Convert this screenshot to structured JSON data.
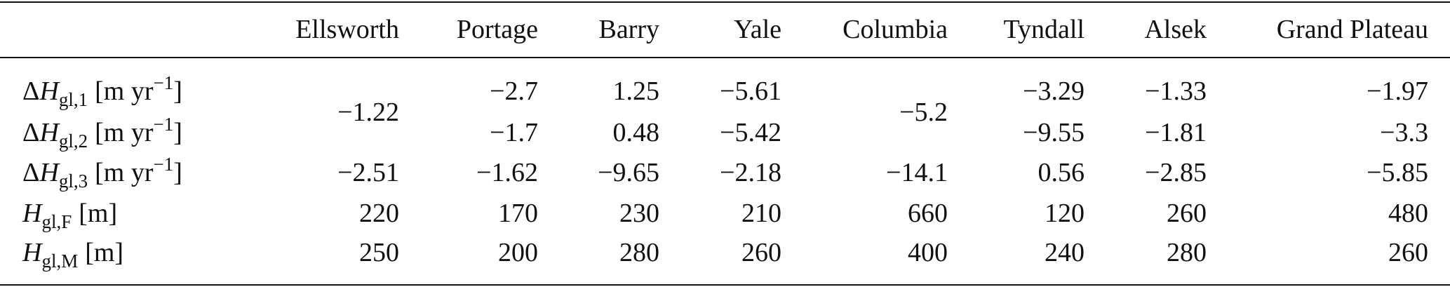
{
  "table": {
    "columns": [
      "Ellsworth",
      "Portage",
      "Barry",
      "Yale",
      "Columbia",
      "Tyndall",
      "Alsek",
      "Grand Plateau"
    ],
    "rows": [
      {
        "label": {
          "delta": "Δ",
          "symbol": "H",
          "subscript": "gl,1",
          "unit": "[m yr",
          "superscript": "−1",
          "unit_close": "]"
        },
        "cells": [
          "−1.22",
          "−2.7",
          "1.25",
          "−5.61",
          "−5.2",
          "−3.29",
          "−1.33",
          "−1.97"
        ]
      },
      {
        "label": {
          "delta": "Δ",
          "symbol": "H",
          "subscript": "gl,2",
          "unit": "[m yr",
          "superscript": "−1",
          "unit_close": "]"
        },
        "cells": [
          null,
          "−1.7",
          "0.48",
          "−5.42",
          null,
          "−9.55",
          "−1.81",
          "−3.3"
        ]
      },
      {
        "label": {
          "delta": "Δ",
          "symbol": "H",
          "subscript": "gl,3",
          "unit": "[m yr",
          "superscript": "−1",
          "unit_close": "]"
        },
        "cells": [
          "−2.51",
          "−1.62",
          "−9.65",
          "−2.18",
          "−14.1",
          "0.56",
          "−2.85",
          "−5.85"
        ]
      },
      {
        "label": {
          "symbol": "H",
          "subscript": "gl,F",
          "unit": "[m]"
        },
        "cells": [
          "220",
          "170",
          "230",
          "210",
          "660",
          "120",
          "260",
          "480"
        ]
      },
      {
        "label": {
          "symbol": "H",
          "subscript": "gl,M",
          "unit": "[m]"
        },
        "cells": [
          "250",
          "200",
          "280",
          "260",
          "400",
          "240",
          "280",
          "260"
        ]
      }
    ]
  }
}
